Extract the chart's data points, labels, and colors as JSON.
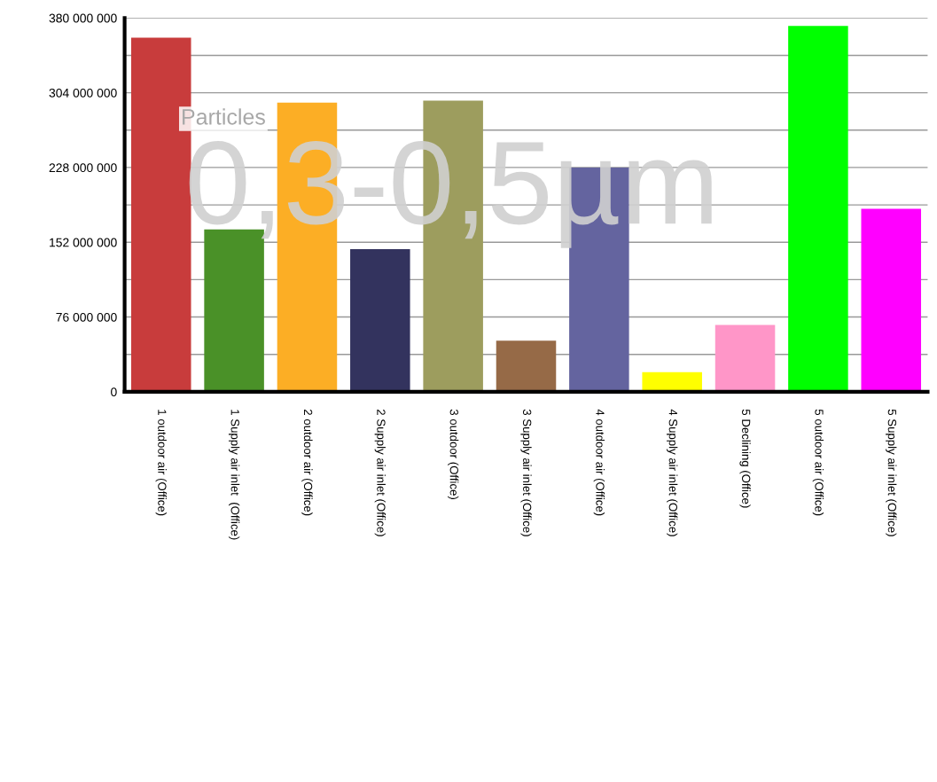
{
  "chart_data": {
    "type": "bar",
    "categories": [
      "1 outdoor air (Office)",
      "1 Supply air inlet  (Office)",
      "2 outdoor air (Office)",
      "2 Supply air inlet (Office)",
      "3 outdoor (Office)",
      "3 Supply air inlet (Office)",
      "4 outdoor air (Office)",
      "4 Supply air inlet (Office)",
      "5 Declining (Office)",
      "5 outdoor air (Office)",
      "5 Supply air inlet (Office)"
    ],
    "values": [
      360000000,
      165000000,
      294000000,
      145000000,
      296000000,
      52000000,
      228000000,
      20000000,
      68000000,
      372000000,
      186000000
    ],
    "colors": [
      "#c83c3c",
      "#4a9128",
      "#fcae25",
      "#33335e",
      "#9d9d5e",
      "#966a47",
      "#64649f",
      "#ffff00",
      "#ff96c8",
      "#00ff00",
      "#ff00ff"
    ],
    "ylim": [
      0,
      380000000
    ],
    "yticks": [
      0,
      {
        "value": 38000000,
        "label": null
      },
      {
        "value": 76000000,
        "label": "76 000 000"
      },
      {
        "value": 114000000,
        "label": null
      },
      {
        "value": 152000000,
        "label": "152 000 000"
      },
      {
        "value": 190000000,
        "label": null
      },
      {
        "value": 228000000,
        "label": "228 000 000"
      },
      {
        "value": 266000000,
        "label": null
      },
      {
        "value": 304000000,
        "label": "304 000 000"
      },
      {
        "value": 342000000,
        "label": null
      },
      {
        "value": 380000000,
        "label": "380 000 000"
      }
    ],
    "grid": "y",
    "annotations": [
      "Particles",
      "0,3-0,5µm"
    ]
  }
}
